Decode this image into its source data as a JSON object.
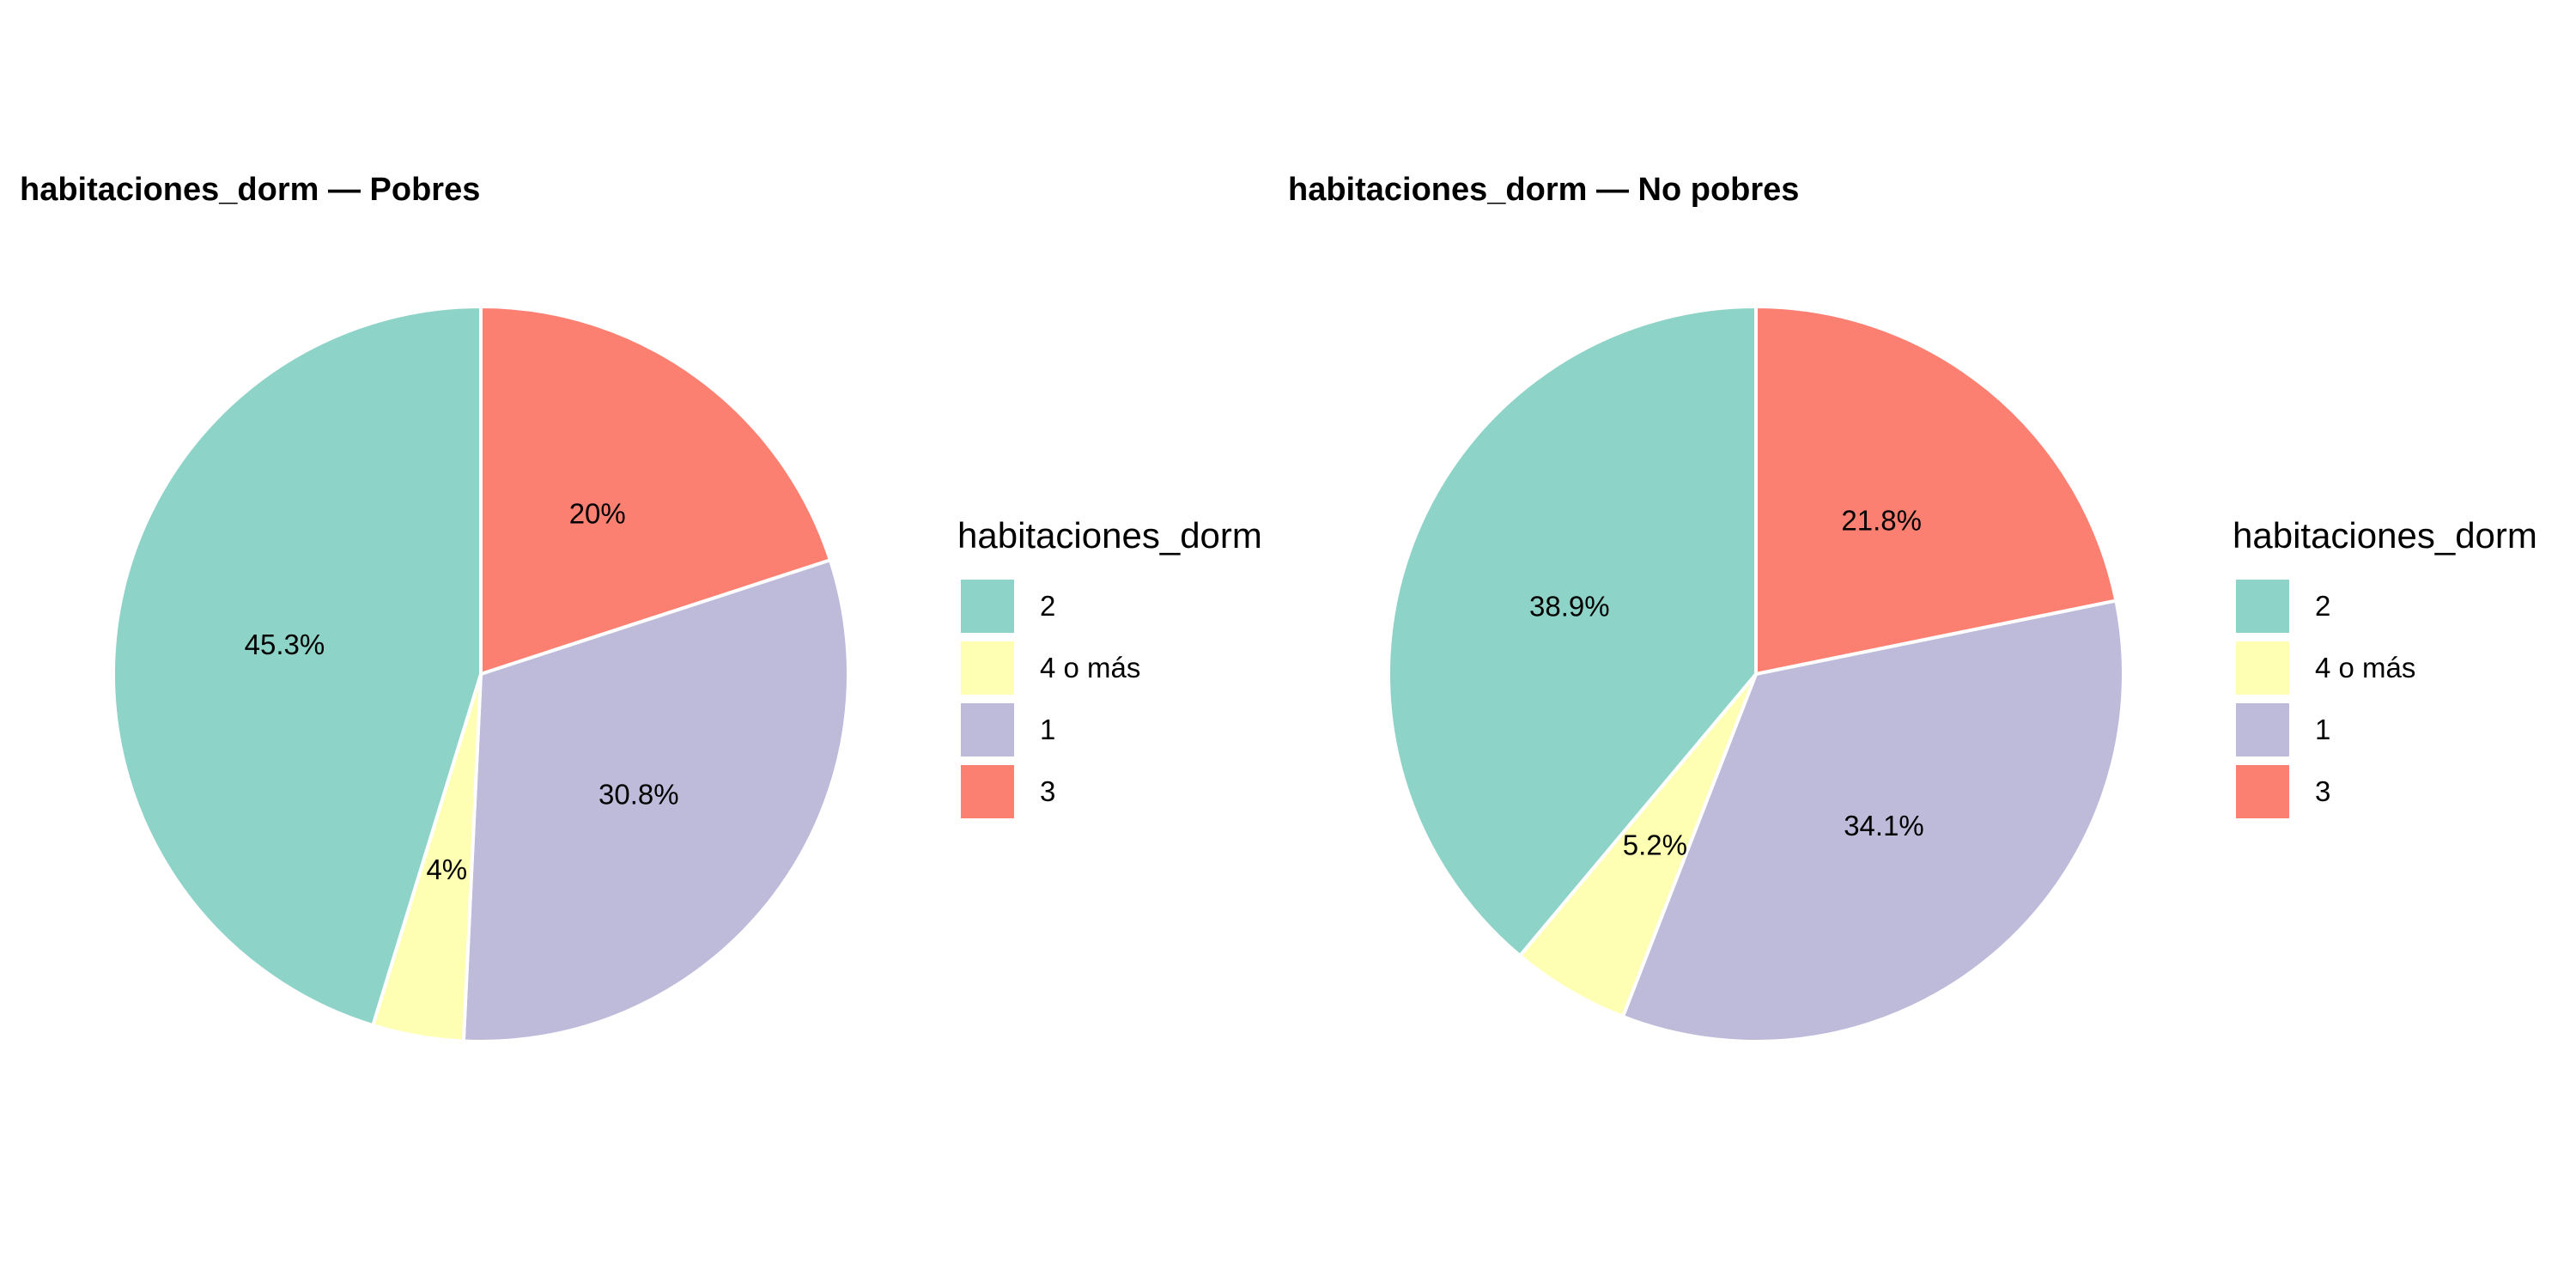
{
  "chart_data": [
    {
      "type": "pie",
      "title": "habitaciones_dorm — Pobres",
      "legend_title": "habitaciones_dorm",
      "legend_placement": "right",
      "start_angle": "top-clockwise",
      "slices": [
        {
          "label": "3",
          "value": 20.0,
          "display": "20%",
          "color": "#FB8072"
        },
        {
          "label": "1",
          "value": 30.8,
          "display": "30.8%",
          "color": "#BEBADA"
        },
        {
          "label": "4 o más",
          "value": 4.0,
          "display": "4%",
          "color": "#FFFFB3"
        },
        {
          "label": "2",
          "value": 45.3,
          "display": "45.3%",
          "color": "#8DD3C7"
        }
      ],
      "legend_order": [
        "2",
        "4 o más",
        "1",
        "3"
      ]
    },
    {
      "type": "pie",
      "title": "habitaciones_dorm — No pobres",
      "legend_title": "habitaciones_dorm",
      "legend_placement": "right",
      "start_angle": "top-clockwise",
      "slices": [
        {
          "label": "3",
          "value": 21.8,
          "display": "21.8%",
          "color": "#FB8072"
        },
        {
          "label": "1",
          "value": 34.1,
          "display": "34.1%",
          "color": "#BEBADA"
        },
        {
          "label": "4 o más",
          "value": 5.2,
          "display": "5.2%",
          "color": "#FFFFB3"
        },
        {
          "label": "2",
          "value": 38.9,
          "display": "38.9%",
          "color": "#8DD3C7"
        }
      ],
      "legend_order": [
        "2",
        "4 o más",
        "1",
        "3"
      ]
    }
  ]
}
